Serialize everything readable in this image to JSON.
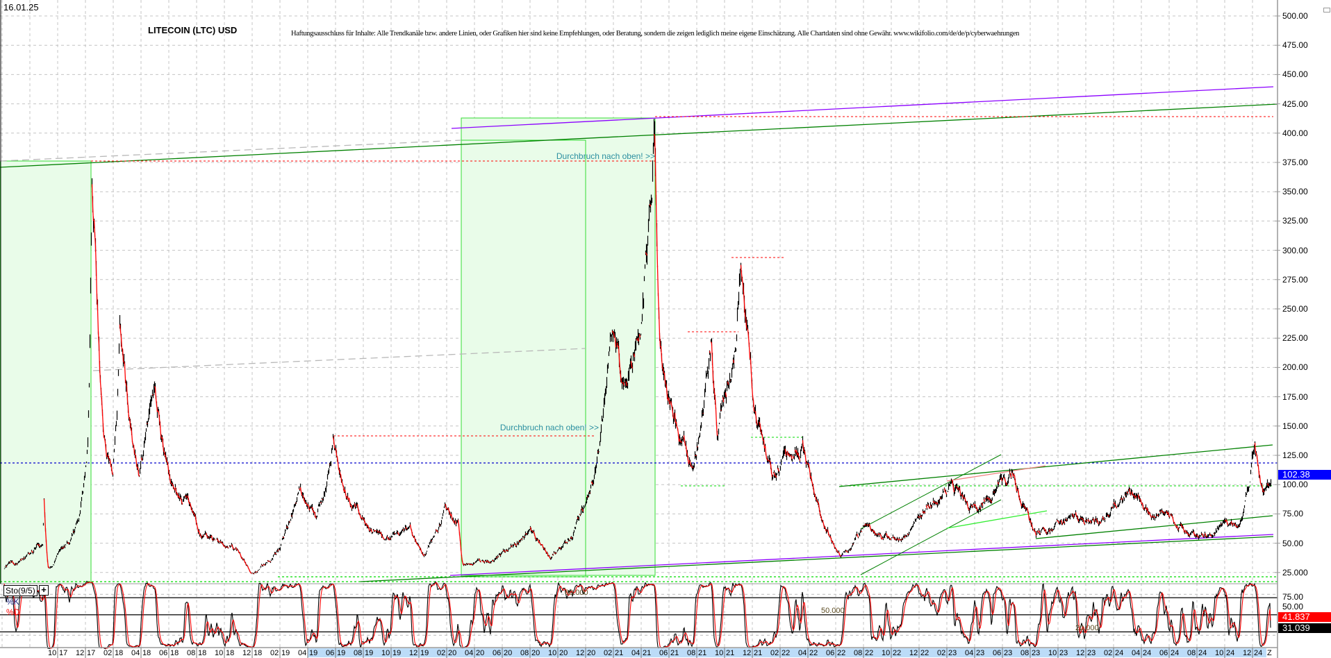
{
  "header": {
    "date": "16.01.25",
    "title": "LITECOIN (LTC) USD",
    "disclaimer": "Haftungsausschluss für Inhalte: Alle Trendkanäle bzw. andere Linien, oder Grafiken hier sind keine Empfehlungen, oder Beratung, sondern die zeigen lediglich meine eigene Einschätzung. Alle Chartdaten sind ohne Gewähr.  www.wikifolio.com/de/de/p/cyberwaehrungen"
  },
  "annotations": {
    "breakout_top": "Durchbruch nach oben! >>",
    "breakout_mid": "Durchbruch nach oben! >>"
  },
  "chart_data": {
    "type": "line",
    "style": "ohlc bars with red down-moves",
    "ylim": [
      15,
      510
    ],
    "grid": true,
    "y_ticks": [
      "500.00",
      "475.00",
      "450.00",
      "425.00",
      "400.00",
      "375.00",
      "350.00",
      "325.00",
      "300.00",
      "275.00",
      "250.00",
      "225.00",
      "200.00",
      "175.00",
      "150.00",
      "125.00",
      "100.00",
      "75.00",
      "50.00",
      "25.000"
    ],
    "x_ticks": [
      [
        "10",
        "17"
      ],
      [
        "12",
        "17"
      ],
      [
        "02",
        "18"
      ],
      [
        "04",
        "18"
      ],
      [
        "06",
        "18"
      ],
      [
        "08",
        "18"
      ],
      [
        "10",
        "18"
      ],
      [
        "12",
        "18"
      ],
      [
        "02",
        "19"
      ],
      [
        "04",
        "19"
      ],
      [
        "06",
        "19"
      ],
      [
        "08",
        "19"
      ],
      [
        "10",
        "19"
      ],
      [
        "12",
        "19"
      ],
      [
        "02",
        "20"
      ],
      [
        "04",
        "20"
      ],
      [
        "06",
        "20"
      ],
      [
        "08",
        "20"
      ],
      [
        "10",
        "20"
      ],
      [
        "12",
        "20"
      ],
      [
        "02",
        "21"
      ],
      [
        "04",
        "21"
      ],
      [
        "06",
        "21"
      ],
      [
        "08",
        "21"
      ],
      [
        "10",
        "21"
      ],
      [
        "12",
        "21"
      ],
      [
        "02",
        "22"
      ],
      [
        "04",
        "22"
      ],
      [
        "06",
        "22"
      ],
      [
        "08",
        "22"
      ],
      [
        "10",
        "22"
      ],
      [
        "12",
        "22"
      ],
      [
        "02",
        "23"
      ],
      [
        "04",
        "23"
      ],
      [
        "06",
        "23"
      ],
      [
        "08",
        "23"
      ],
      [
        "10",
        "23"
      ],
      [
        "12",
        "23"
      ],
      [
        "02",
        "24"
      ],
      [
        "04",
        "24"
      ],
      [
        "06",
        "24"
      ],
      [
        "08",
        "24"
      ],
      [
        "10",
        "24"
      ],
      [
        "12",
        "24"
      ]
    ],
    "x_end_label": "Z",
    "series": [
      {
        "x": [
          "2017-06-05",
          "2017-08-28",
          "2017-09-01",
          "2017-09-10",
          "2017-10-26",
          "2017-11-18",
          "2017-12-05",
          "2017-12-14",
          "2017-12-22",
          "2018-01-11",
          "2018-01-29",
          "2018-02-15",
          "2018-03-05",
          "2018-03-26",
          "2018-04-29",
          "2018-05-26",
          "2018-06-11",
          "2018-07-14",
          "2018-08-11",
          "2018-10-26",
          "2018-12-03",
          "2019-01-26",
          "2019-03-11",
          "2019-04-18",
          "2019-05-26",
          "2019-06-26",
          "2019-07-26",
          "2019-09-15",
          "2019-11-11",
          "2019-12-11",
          "2020-01-26",
          "2020-02-26",
          "2020-03-05",
          "2020-05-10",
          "2020-08-01",
          "2020-09-15",
          "2020-11-12",
          "2020-12-18",
          "2021-01-26",
          "2021-02-22",
          "2021-04-01",
          "2021-04-30",
          "2021-05-12",
          "2021-06-23",
          "2021-07-20",
          "2021-08-17",
          "2021-09-02",
          "2021-09-15",
          "2021-10-21",
          "2021-11-06",
          "2021-11-18",
          "2021-12-08",
          "2022-01-14",
          "2022-03-19",
          "2022-05-04",
          "2022-06-11",
          "2022-08-05",
          "2022-10-19",
          "2022-12-14",
          "2023-02-10",
          "2023-03-25",
          "2023-05-11",
          "2023-06-26",
          "2023-08-13",
          "2023-10-26",
          "2024-01-10",
          "2024-03-04",
          "2024-04-11",
          "2024-06-05",
          "2024-08-01",
          "2024-11-02",
          "2024-12-05",
          "2024-12-23",
          "2025-01-10"
        ],
        "y": [
          28,
          50,
          85,
          30,
          52,
          76,
          129,
          359,
          298,
          141,
          110,
          235,
          160,
          113,
          168,
          118,
          98,
          84,
          55,
          47,
          23,
          42,
          96,
          71,
          139,
          93,
          73,
          54,
          62,
          37,
          80,
          66,
          30,
          36,
          61,
          39,
          65,
          108,
          231,
          180,
          238,
          412,
          224,
          137,
          122,
          180,
          229,
          144,
          202,
          293,
          224,
          159,
          108,
          130,
          72,
          39,
          61,
          50,
          79,
          101,
          75,
          93,
          112,
          57,
          68,
          68,
          101,
          79,
          72,
          54,
          65,
          141,
          97,
          102.38
        ]
      }
    ],
    "last_price": "102.38",
    "levels": [
      377,
      415,
      145,
      295,
      232,
      120,
      102.38,
      143,
      22
    ],
    "indicator": {
      "name": "Sto(9/5)",
      "k_label": "%K",
      "d_label": "%D",
      "level_labels": [
        "80.000",
        "50.000",
        "20.000"
      ],
      "axis_labels": [
        "75.00",
        "50.00"
      ],
      "d_value": "41.837",
      "k_value": "31.039"
    },
    "colors": {
      "bars": "#000000",
      "down": "#ff0000",
      "trend_green": "#008000",
      "trend_purple": "#8b00ff",
      "resistance": "#ff0000",
      "level_blue": "#0000cc",
      "level_green": "#00dd00",
      "box_fill": "#e9fce9",
      "box_stroke": "#33dd33",
      "last_badge": "#0000ff"
    }
  }
}
